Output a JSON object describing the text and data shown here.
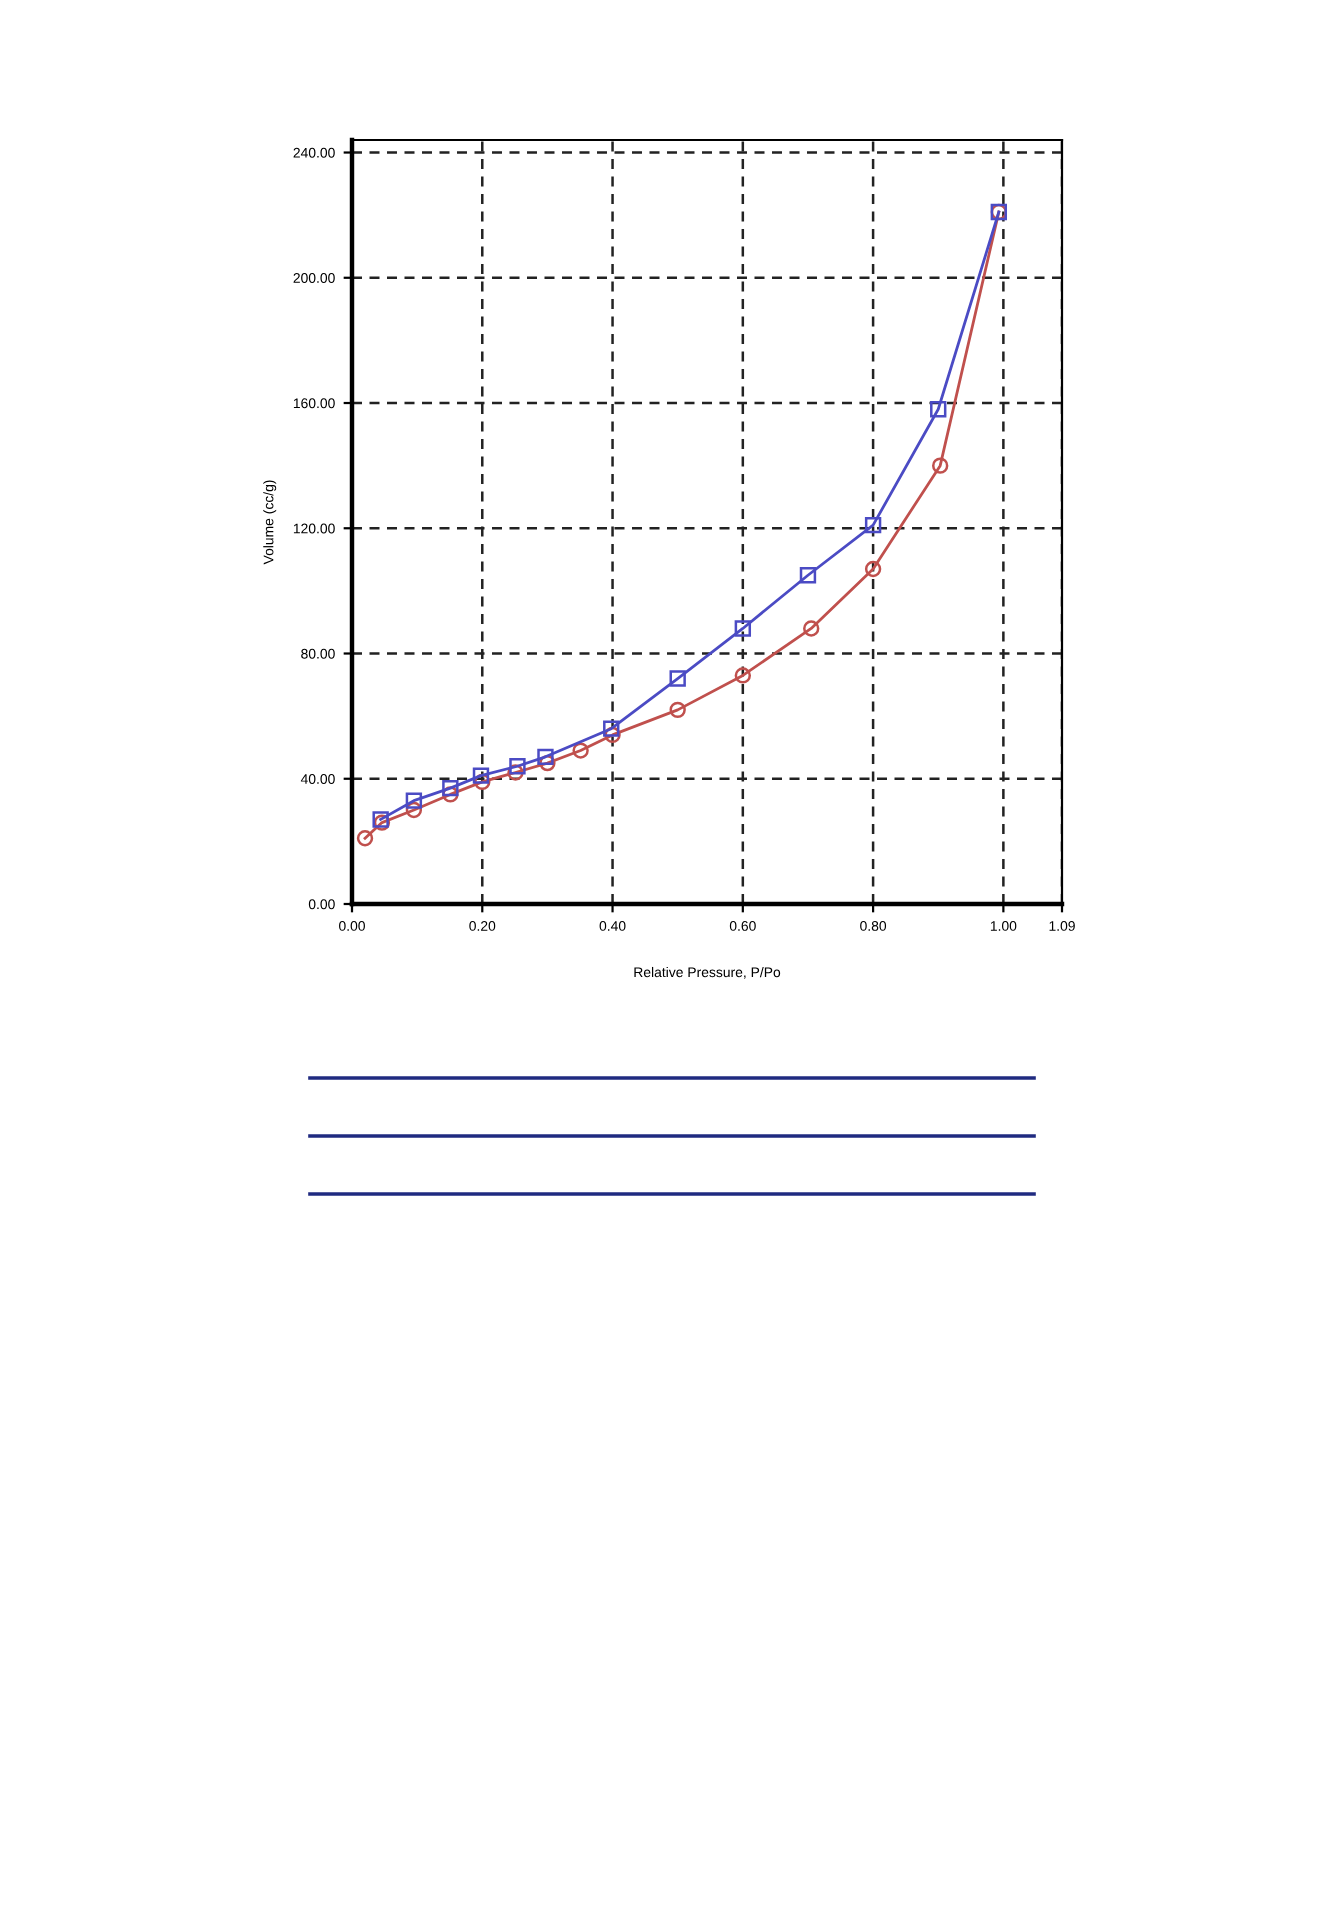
{
  "chart_data": {
    "type": "line",
    "xlabel": "Relative Pressure, P/Po",
    "ylabel": "Volume (cc/g)",
    "xlim": [
      0,
      1.09
    ],
    "ylim": [
      0,
      244
    ],
    "xticks": [
      {
        "value": 0,
        "label": "0.00"
      },
      {
        "value": 0.2,
        "label": "0.20"
      },
      {
        "value": 0.4,
        "label": "0.40"
      },
      {
        "value": 0.6,
        "label": "0.60"
      },
      {
        "value": 0.8,
        "label": "0.80"
      },
      {
        "value": 1.0,
        "label": "1.00"
      },
      {
        "value": 1.09,
        "label": "1.09"
      }
    ],
    "yticks": [
      {
        "value": 0,
        "label": "0.00"
      },
      {
        "value": 40,
        "label": "40.00"
      },
      {
        "value": 80,
        "label": "80.00"
      },
      {
        "value": 120,
        "label": "120.00"
      },
      {
        "value": 160,
        "label": "160.00"
      },
      {
        "value": 200,
        "label": "200.00"
      },
      {
        "value": 240,
        "label": "240.00"
      }
    ],
    "grid": true,
    "line_style": "solid",
    "series": [
      {
        "color": "#c0504d",
        "marker": "circle",
        "x": [
          0.02,
          0.046,
          0.095,
          0.151,
          0.2,
          0.251,
          0.3,
          0.351,
          0.4,
          0.5,
          0.6,
          0.705,
          0.8,
          0.903,
          0.993
        ],
        "values": [
          21,
          26,
          30,
          35,
          39,
          42,
          45,
          49,
          54,
          62,
          73,
          88,
          107,
          140,
          221
        ]
      },
      {
        "color": "#4b4bc4",
        "marker": "square",
        "x": [
          0.044,
          0.095,
          0.151,
          0.198,
          0.254,
          0.297,
          0.398,
          0.5,
          0.6,
          0.7,
          0.8,
          0.9,
          0.993
        ],
        "values": [
          27,
          33,
          37,
          41,
          44,
          47,
          56,
          72,
          88,
          105,
          121,
          158,
          221
        ]
      }
    ]
  }
}
